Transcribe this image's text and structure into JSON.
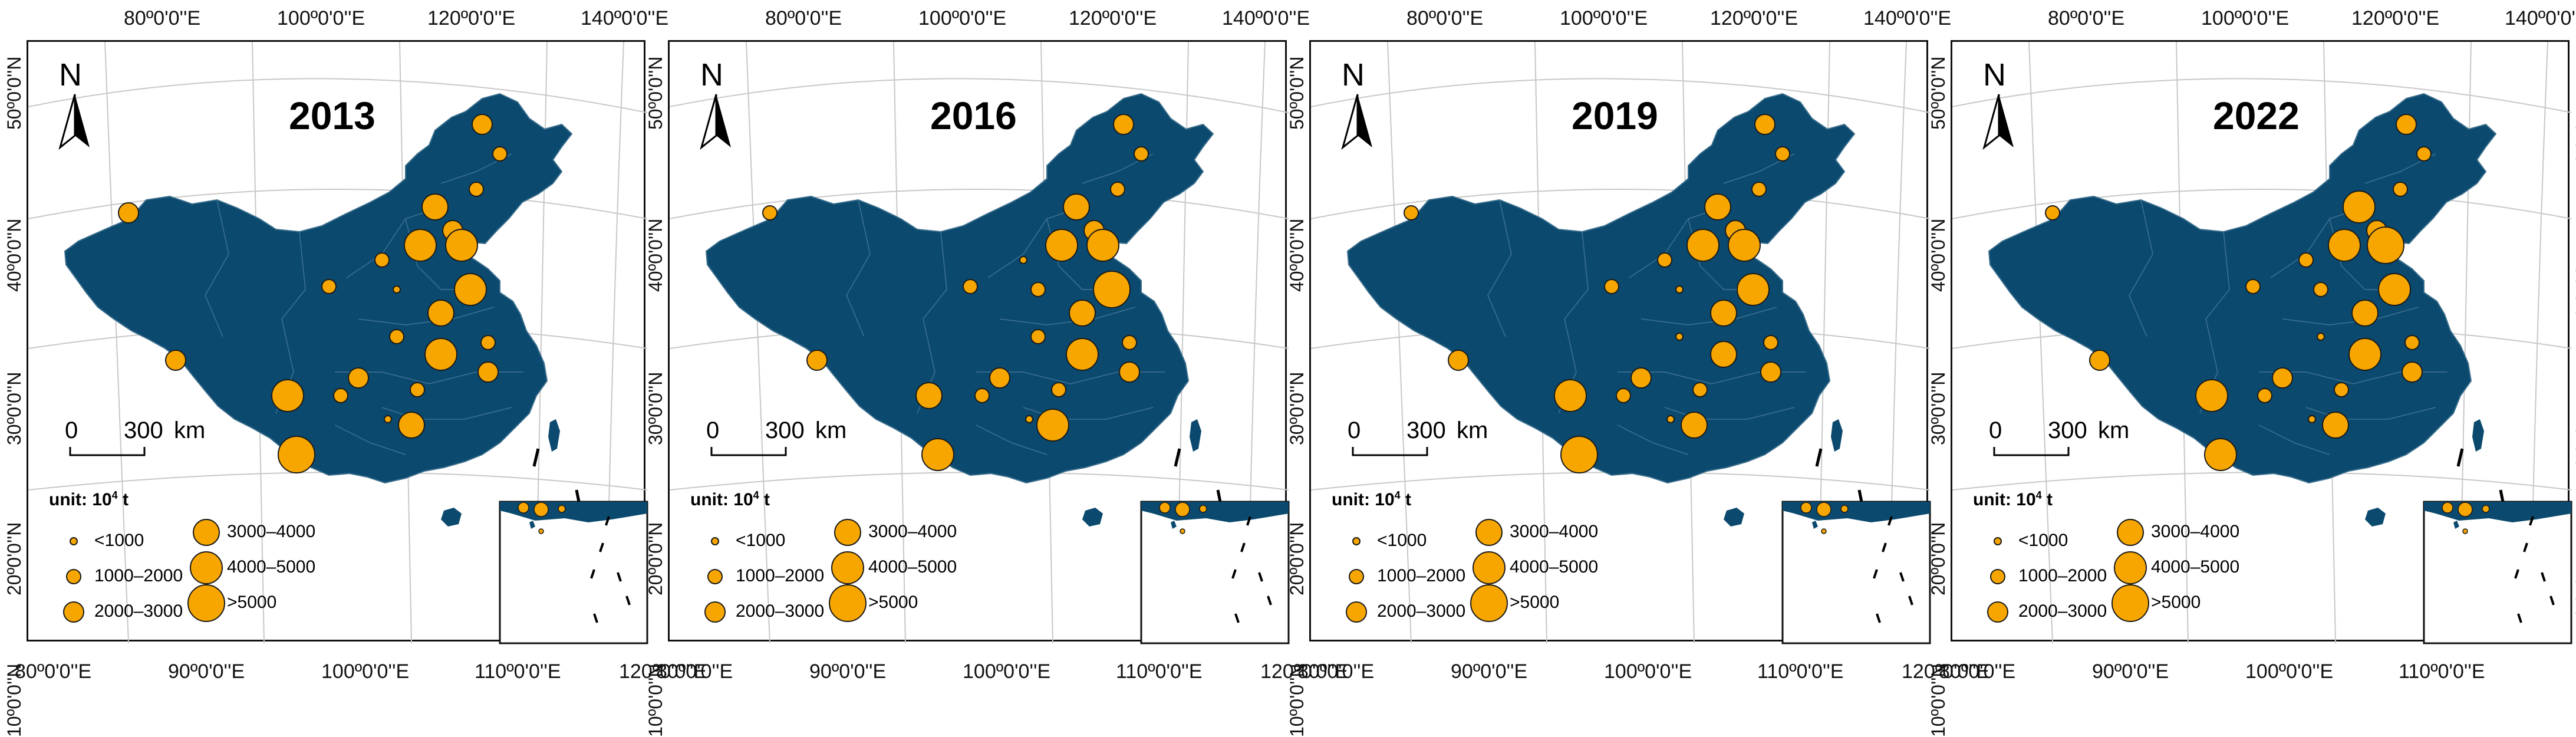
{
  "map": {
    "panels": [
      {
        "year": "2013"
      },
      {
        "year": "2016"
      },
      {
        "year": "2019"
      },
      {
        "year": "2022"
      }
    ],
    "longitude_labels_top": [
      "80º0'0''E",
      "100º0'0''E",
      "120º0'0''E",
      "140º0'0''E"
    ],
    "longitude_labels_bottom": [
      "80º0'0''E",
      "90º0'0''E",
      "100º0'0''E",
      "110º0'0''E",
      "120º0'0''E"
    ],
    "latitude_labels_left": [
      "50º0'0''N",
      "40º0'0''N",
      "30º0'0''N",
      "20º0'0''N",
      "10º0'0''N"
    ],
    "latitude_labels_right": [
      "40º0'0''N",
      "30º0'0''N",
      "20º0'0''N",
      "10º0'0''N"
    ],
    "north_arrow": "N",
    "scale_bar": {
      "zero": "0",
      "distance": "300",
      "unit": "km"
    },
    "unit_label": "unit: 10",
    "unit_exp": "4",
    "unit_suffix": " t",
    "legend": [
      {
        "label": "<1000",
        "size_class": 1
      },
      {
        "label": "1000–2000",
        "size_class": 2
      },
      {
        "label": "2000–3000",
        "size_class": 3
      },
      {
        "label": "3000–4000",
        "size_class": 4
      },
      {
        "label": "4000–5000",
        "size_class": 5
      },
      {
        "label": ">5000",
        "size_class": 6
      }
    ],
    "colors": {
      "land": "#0b4a6e",
      "symbol_fill": "#f7a600",
      "symbol_stroke": "#1a1a1a",
      "frame": "#111111"
    },
    "symbol_icon": "proportional-circle",
    "north_icon": "north-arrow-icon"
  }
}
